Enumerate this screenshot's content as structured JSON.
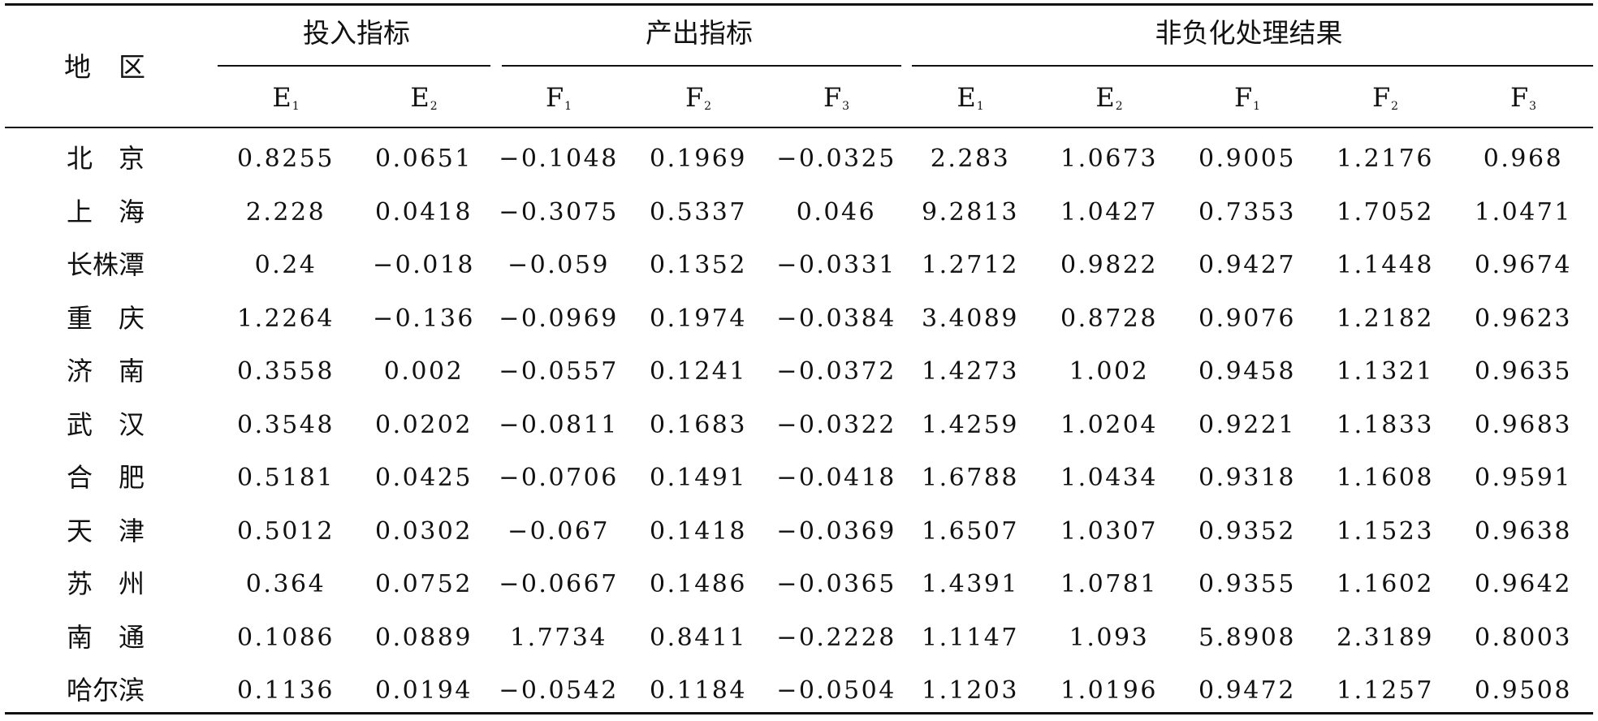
{
  "table": {
    "region_header": "地区",
    "groups": [
      {
        "label": "投入指标",
        "columns": [
          "E",
          "E"
        ],
        "subs": [
          "1",
          "2"
        ]
      },
      {
        "label": "产出指标",
        "columns": [
          "F",
          "F",
          "F"
        ],
        "subs": [
          "1",
          "2",
          "3"
        ]
      },
      {
        "label": "非负化处理结果",
        "columns": [
          "E",
          "E",
          "F",
          "F",
          "F"
        ],
        "subs": [
          "1",
          "2",
          "1",
          "2",
          "3"
        ]
      }
    ],
    "rows": [
      {
        "region": "北　京",
        "values": [
          "0.8255",
          "0.0651",
          "−0.1048",
          "0.1969",
          "−0.0325",
          "2.283",
          "1.0673",
          "0.9005",
          "1.2176",
          "0.968"
        ]
      },
      {
        "region": "上　海",
        "values": [
          "2.228",
          "0.0418",
          "−0.3075",
          "0.5337",
          "0.046",
          "9.2813",
          "1.0427",
          "0.7353",
          "1.7052",
          "1.0471"
        ]
      },
      {
        "region": "长株潭",
        "values": [
          "0.24",
          "−0.018",
          "−0.059",
          "0.1352",
          "−0.0331",
          "1.2712",
          "0.9822",
          "0.9427",
          "1.1448",
          "0.9674"
        ]
      },
      {
        "region": "重　庆",
        "values": [
          "1.2264",
          "−0.136",
          "−0.0969",
          "0.1974",
          "−0.0384",
          "3.4089",
          "0.8728",
          "0.9076",
          "1.2182",
          "0.9623"
        ]
      },
      {
        "region": "济　南",
        "values": [
          "0.3558",
          "0.002",
          "−0.0557",
          "0.1241",
          "−0.0372",
          "1.4273",
          "1.002",
          "0.9458",
          "1.1321",
          "0.9635"
        ]
      },
      {
        "region": "武　汉",
        "values": [
          "0.3548",
          "0.0202",
          "−0.0811",
          "0.1683",
          "−0.0322",
          "1.4259",
          "1.0204",
          "0.9221",
          "1.1833",
          "0.9683"
        ]
      },
      {
        "region": "合　肥",
        "values": [
          "0.5181",
          "0.0425",
          "−0.0706",
          "0.1491",
          "−0.0418",
          "1.6788",
          "1.0434",
          "0.9318",
          "1.1608",
          "0.9591"
        ]
      },
      {
        "region": "天　津",
        "values": [
          "0.5012",
          "0.0302",
          "−0.067",
          "0.1418",
          "−0.0369",
          "1.6507",
          "1.0307",
          "0.9352",
          "1.1523",
          "0.9638"
        ]
      },
      {
        "region": "苏　州",
        "values": [
          "0.364",
          "0.0752",
          "−0.0667",
          "0.1486",
          "−0.0365",
          "1.4391",
          "1.0781",
          "0.9355",
          "1.1602",
          "0.9642"
        ]
      },
      {
        "region": "南　通",
        "values": [
          "0.1086",
          "0.0889",
          "1.7734",
          "0.8411",
          "−0.2228",
          "1.1147",
          "1.093",
          "5.8908",
          "2.3189",
          "0.8003"
        ]
      },
      {
        "region": "哈尔滨",
        "values": [
          "0.1136",
          "0.0194",
          "−0.0542",
          "0.1184",
          "−0.0504",
          "1.1203",
          "1.0196",
          "0.9472",
          "1.1257",
          "0.9508"
        ]
      }
    ]
  }
}
